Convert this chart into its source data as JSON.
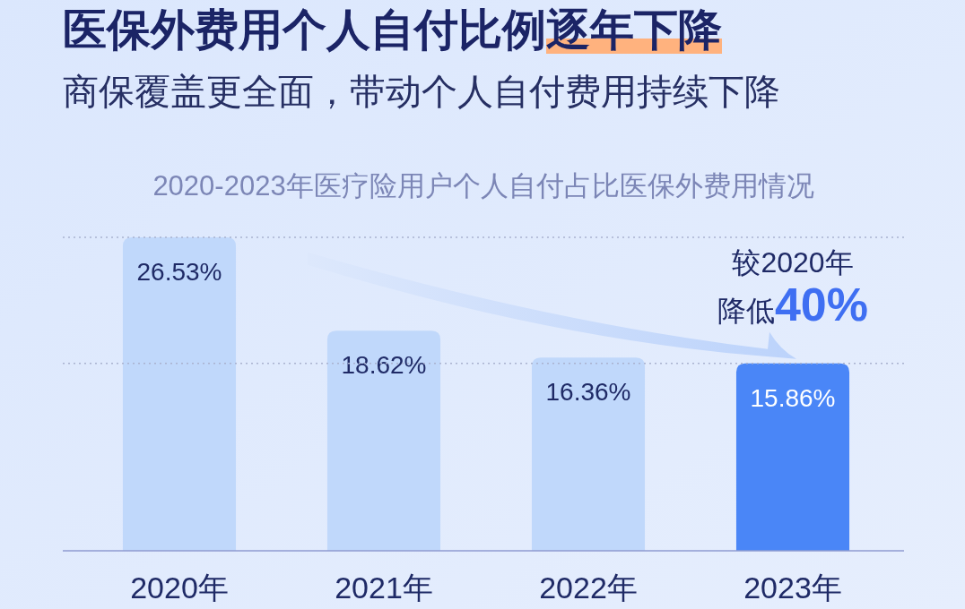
{
  "chart_data": {
    "type": "bar",
    "title": "医保外费用个人自付比例逐年下降",
    "subtitle": "商保覆盖更全面，带动个人自付费用持续下降",
    "categories": [
      "2020年",
      "2021年",
      "2022年",
      "2023年"
    ],
    "values": [
      26.53,
      18.62,
      16.36,
      15.86
    ],
    "value_labels": [
      "26.53%",
      "18.62%",
      "16.36%",
      "15.86%"
    ],
    "colors": [
      "#c0d8fb",
      "#c0d8fb",
      "#c0d8fb",
      "#4a86f7"
    ],
    "ref_lines": [
      {
        "axis": "y",
        "value": 26.53,
        "line_style": "dotted",
        "color": "#a9b2cf"
      },
      {
        "axis": "y",
        "value": 15.86,
        "line_style": "dotted",
        "color": "#a9b2cf"
      }
    ],
    "annotations": [
      "2020-2023年医疗险用户个人自付占比医保外费用情况",
      {
        "text": "较2020年",
        "x": "2023年",
        "y": 15.86
      },
      {
        "text": "降低**40%**",
        "x": "2023年",
        "y": 15.86
      }
    ]
  }
}
